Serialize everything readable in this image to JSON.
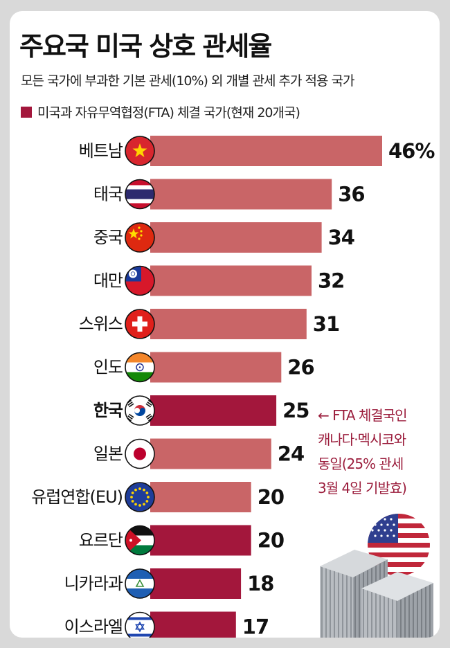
{
  "title": "주요국 미국 상호 관세율",
  "subtitle": "모든 국가에 부과한 기본 관세(10%) 외 개별 관세 추가 적용 국가",
  "legend": {
    "label": "미국과 자유무역협정(FTA) 체결 국가(현재 20개국)",
    "color": "#a3173c"
  },
  "colors": {
    "fta": "#a3173c",
    "non_fta": "#c96567",
    "highlight_text": "#9b1d3c"
  },
  "annotation": {
    "lines": [
      "← FTA 체결국인",
      "캐나다·멕시코와",
      "동일(25% 관세",
      "3월 4일 기발효)"
    ]
  },
  "chart_data": {
    "type": "bar",
    "orientation": "horizontal",
    "categories": [
      "베트남",
      "태국",
      "중국",
      "대만",
      "스위스",
      "인도",
      "한국",
      "일본",
      "유럽연합(EU)",
      "요르단",
      "니카라과",
      "이스라엘"
    ],
    "values": [
      46,
      36,
      34,
      32,
      31,
      26,
      25,
      24,
      20,
      20,
      18,
      17
    ],
    "value_labels": [
      "46%",
      "36",
      "34",
      "32",
      "31",
      "26",
      "25",
      "24",
      "20",
      "20",
      "18",
      "17"
    ],
    "fta": [
      false,
      false,
      false,
      false,
      false,
      false,
      true,
      false,
      false,
      true,
      true,
      true
    ],
    "highlight": [
      false,
      false,
      false,
      false,
      false,
      false,
      true,
      false,
      false,
      false,
      false,
      false
    ],
    "flags": [
      "vietnam-flag-icon",
      "thailand-flag-icon",
      "china-flag-icon",
      "taiwan-flag-icon",
      "switzerland-flag-icon",
      "india-flag-icon",
      "korea-flag-icon",
      "japan-flag-icon",
      "eu-flag-icon",
      "jordan-flag-icon",
      "nicaragua-flag-icon",
      "israel-flag-icon"
    ],
    "xlim": [
      0,
      46
    ],
    "unit": "%",
    "grid": false
  },
  "decorations": {
    "flag": "us-flag-icon",
    "containers": "shipping-container-icon"
  }
}
